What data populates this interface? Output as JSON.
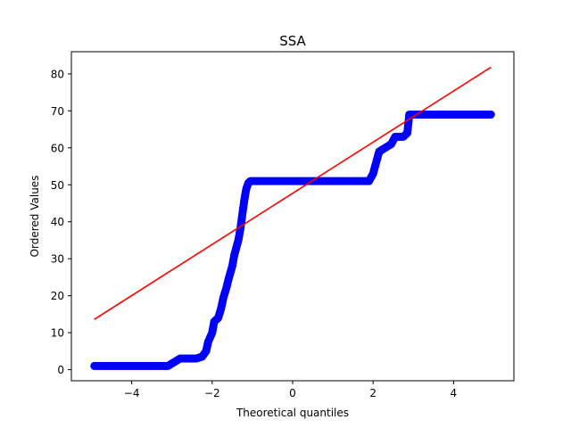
{
  "chart_data": {
    "type": "scatter",
    "title": "SSA",
    "xlabel": "Theoretical quantiles",
    "ylabel": "Ordered Values",
    "xlim": [
      -5.5,
      5.5
    ],
    "ylim": [
      -3.0,
      86.0
    ],
    "x_ticks": [
      -4,
      -2,
      0,
      2,
      4
    ],
    "x_tick_labels": [
      "−4",
      "−2",
      "0",
      "2",
      "4"
    ],
    "y_ticks": [
      0,
      10,
      20,
      30,
      40,
      50,
      60,
      70,
      80
    ],
    "y_tick_labels": [
      "0",
      "10",
      "20",
      "30",
      "40",
      "50",
      "60",
      "70",
      "80"
    ],
    "grid": false,
    "series": [
      {
        "kind": "points",
        "color": "#0000ff",
        "points": [
          [
            -4.93,
            1
          ],
          [
            -4.6,
            1
          ],
          [
            -4.3,
            1
          ],
          [
            -4.0,
            1
          ],
          [
            -3.7,
            1
          ],
          [
            -3.4,
            1
          ],
          [
            -3.1,
            1
          ],
          [
            -2.95,
            2
          ],
          [
            -2.8,
            3
          ],
          [
            -2.6,
            3
          ],
          [
            -2.4,
            3
          ],
          [
            -2.25,
            3.5
          ],
          [
            -2.15,
            5
          ],
          [
            -2.1,
            7.5
          ],
          [
            -2.0,
            10
          ],
          [
            -1.95,
            13
          ],
          [
            -1.85,
            14
          ],
          [
            -1.78,
            16.5
          ],
          [
            -1.72,
            19.5
          ],
          [
            -1.65,
            22
          ],
          [
            -1.58,
            25
          ],
          [
            -1.5,
            28
          ],
          [
            -1.45,
            31
          ],
          [
            -1.4,
            33
          ],
          [
            -1.35,
            35
          ],
          [
            -1.3,
            38
          ],
          [
            -1.25,
            42
          ],
          [
            -1.2,
            46
          ],
          [
            -1.15,
            49
          ],
          [
            -1.1,
            50.5
          ],
          [
            -1.05,
            51
          ],
          [
            -0.7,
            51
          ],
          [
            -0.3,
            51
          ],
          [
            0.1,
            51
          ],
          [
            0.5,
            51
          ],
          [
            0.9,
            51
          ],
          [
            1.3,
            51
          ],
          [
            1.7,
            51
          ],
          [
            1.9,
            51
          ],
          [
            2.0,
            53
          ],
          [
            2.05,
            55
          ],
          [
            2.1,
            57
          ],
          [
            2.15,
            59
          ],
          [
            2.3,
            60
          ],
          [
            2.45,
            61
          ],
          [
            2.55,
            63
          ],
          [
            2.65,
            63
          ],
          [
            2.75,
            63
          ],
          [
            2.85,
            64
          ],
          [
            2.9,
            69
          ],
          [
            3.2,
            69
          ],
          [
            3.6,
            69
          ],
          [
            4.0,
            69
          ],
          [
            4.4,
            69
          ],
          [
            4.7,
            69
          ],
          [
            4.93,
            69
          ]
        ]
      },
      {
        "kind": "line",
        "color": "#ff0000",
        "points": [
          [
            -4.93,
            13.6
          ],
          [
            4.93,
            81.8
          ]
        ]
      }
    ]
  }
}
